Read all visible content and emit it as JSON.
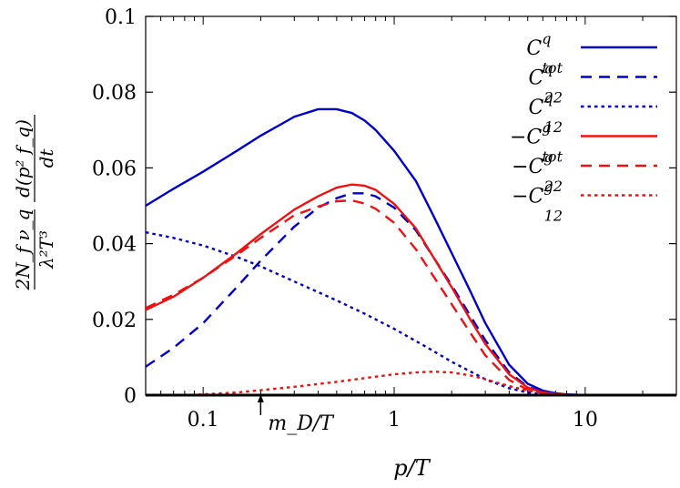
{
  "chart_data": {
    "type": "line",
    "title": "",
    "xlabel": "p/T",
    "ylabel": "(2 N_f ν_q / λ² T³) · d(p² f_q)/dt",
    "ylabel_parts": {
      "numerator": "2N_f ν_q",
      "denominator": "λ²T³",
      "derivative_numerator": "d(p² f_q)",
      "derivative_denominator": "dt"
    },
    "x_scale": "log",
    "xlim": [
      0.05,
      30
    ],
    "ylim": [
      0,
      0.1
    ],
    "x_ticks": [
      0.1,
      1,
      10
    ],
    "x_tick_labels": [
      "0.1",
      "1",
      "10"
    ],
    "y_ticks": [
      0,
      0.02,
      0.04,
      0.06,
      0.08,
      0.1
    ],
    "y_tick_labels": [
      "0",
      "0.02",
      "0.04",
      "0.06",
      "0.08",
      "0.1"
    ],
    "annotation": {
      "text": "m_D/T",
      "x": 0.2,
      "arrow": true
    },
    "legend_position": "top-right",
    "series": [
      {
        "name": "C^q_tot",
        "legend": {
          "pre": "",
          "base": "C",
          "sup": "q",
          "sub": "tot"
        },
        "color": "#0000cc",
        "dash": "solid",
        "x": [
          0.05,
          0.07,
          0.1,
          0.15,
          0.2,
          0.3,
          0.4,
          0.5,
          0.6,
          0.7,
          0.8,
          1.0,
          1.3,
          1.6,
          2.0,
          2.5,
          3.0,
          4.0,
          5.0,
          6.0,
          7.0,
          8.0,
          10.0,
          15.0,
          20.0,
          30.0
        ],
        "y": [
          0.05,
          0.0545,
          0.059,
          0.0645,
          0.0685,
          0.0735,
          0.0755,
          0.0755,
          0.0745,
          0.0725,
          0.07,
          0.0645,
          0.0565,
          0.0475,
          0.0375,
          0.0275,
          0.019,
          0.008,
          0.003,
          0.0012,
          0.0005,
          0.0002,
          0.0,
          0.0,
          0.0,
          0.0
        ]
      },
      {
        "name": "C^q_22",
        "legend": {
          "pre": "",
          "base": "C",
          "sup": "q",
          "sub": "22"
        },
        "color": "#0000cc",
        "dash": "longdash",
        "x": [
          0.05,
          0.07,
          0.1,
          0.15,
          0.2,
          0.3,
          0.4,
          0.5,
          0.6,
          0.7,
          0.8,
          1.0,
          1.3,
          1.6,
          2.0,
          2.5,
          3.0,
          4.0,
          5.0,
          6.0,
          7.0,
          8.0,
          10.0,
          15.0,
          20.0,
          30.0
        ],
        "y": [
          0.0075,
          0.0125,
          0.019,
          0.0285,
          0.0355,
          0.0445,
          0.0495,
          0.052,
          0.0533,
          0.0533,
          0.0525,
          0.0495,
          0.0435,
          0.0365,
          0.029,
          0.021,
          0.0145,
          0.006,
          0.0022,
          0.0008,
          0.0003,
          0.0001,
          0.0,
          0.0,
          0.0,
          0.0
        ]
      },
      {
        "name": "C^q_12",
        "legend": {
          "pre": "",
          "base": "C",
          "sup": "q",
          "sub": "12"
        },
        "color": "#0000cc",
        "dash": "dot",
        "x": [
          0.05,
          0.07,
          0.1,
          0.15,
          0.2,
          0.3,
          0.4,
          0.5,
          0.7,
          1.0,
          1.5,
          2.0,
          3.0,
          4.0,
          5.0,
          6.0,
          7.0,
          8.0,
          10.0,
          15.0,
          20.0,
          30.0
        ],
        "y": [
          0.043,
          0.0415,
          0.0395,
          0.0365,
          0.034,
          0.03,
          0.0272,
          0.025,
          0.0215,
          0.0175,
          0.0125,
          0.0088,
          0.0042,
          0.0018,
          0.0007,
          0.0003,
          0.0001,
          0.0,
          0.0,
          0.0,
          0.0,
          0.0
        ]
      },
      {
        "name": "-C^g_tot",
        "legend": {
          "pre": "−",
          "base": "C",
          "sup": "g",
          "sub": "tot"
        },
        "color": "#ee1111",
        "dash": "solid",
        "x": [
          0.05,
          0.07,
          0.1,
          0.15,
          0.2,
          0.3,
          0.4,
          0.5,
          0.6,
          0.7,
          0.8,
          1.0,
          1.3,
          1.6,
          2.0,
          2.5,
          3.0,
          4.0,
          5.0,
          6.0,
          7.0,
          8.0,
          10.0,
          15.0,
          20.0,
          30.0
        ],
        "y": [
          0.0225,
          0.026,
          0.031,
          0.0375,
          0.0425,
          0.049,
          0.0525,
          0.0548,
          0.0556,
          0.0553,
          0.0542,
          0.0505,
          0.044,
          0.0365,
          0.0285,
          0.02,
          0.0135,
          0.0055,
          0.002,
          0.0007,
          0.0003,
          0.0001,
          0.0,
          0.0,
          0.0,
          0.0
        ]
      },
      {
        "name": "-C^g_22",
        "legend": {
          "pre": "−",
          "base": "C",
          "sup": "g",
          "sub": "22"
        },
        "color": "#ee1111",
        "dash": "longdash",
        "x": [
          0.05,
          0.07,
          0.1,
          0.15,
          0.2,
          0.3,
          0.4,
          0.5,
          0.6,
          0.7,
          0.8,
          1.0,
          1.3,
          1.6,
          2.0,
          2.5,
          3.0,
          4.0,
          5.0,
          6.0,
          7.0,
          8.0,
          10.0,
          15.0,
          20.0,
          30.0
        ],
        "y": [
          0.023,
          0.0265,
          0.031,
          0.037,
          0.0415,
          0.0475,
          0.0498,
          0.0512,
          0.0514,
          0.0506,
          0.0492,
          0.0455,
          0.0385,
          0.0315,
          0.024,
          0.0165,
          0.0105,
          0.004,
          0.0014,
          0.0005,
          0.0002,
          0.0001,
          0.0,
          0.0,
          0.0,
          0.0
        ]
      },
      {
        "name": "-C^g_12",
        "legend": {
          "pre": "−",
          "base": "C",
          "sup": "g",
          "sub": "12"
        },
        "color": "#ee1111",
        "dash": "dot",
        "x": [
          0.08,
          0.1,
          0.15,
          0.2,
          0.3,
          0.5,
          0.7,
          1.0,
          1.3,
          1.6,
          2.0,
          2.5,
          3.0,
          4.0,
          5.0,
          6.0,
          7.0,
          8.0,
          10.0,
          15.0,
          20.0,
          30.0
        ],
        "y": [
          0.0,
          0.0002,
          0.0007,
          0.0013,
          0.0022,
          0.0035,
          0.0045,
          0.0055,
          0.006,
          0.0062,
          0.006,
          0.0052,
          0.0042,
          0.0024,
          0.0012,
          0.0006,
          0.0003,
          0.0001,
          0.0,
          0.0,
          0.0,
          0.0
        ]
      }
    ]
  }
}
